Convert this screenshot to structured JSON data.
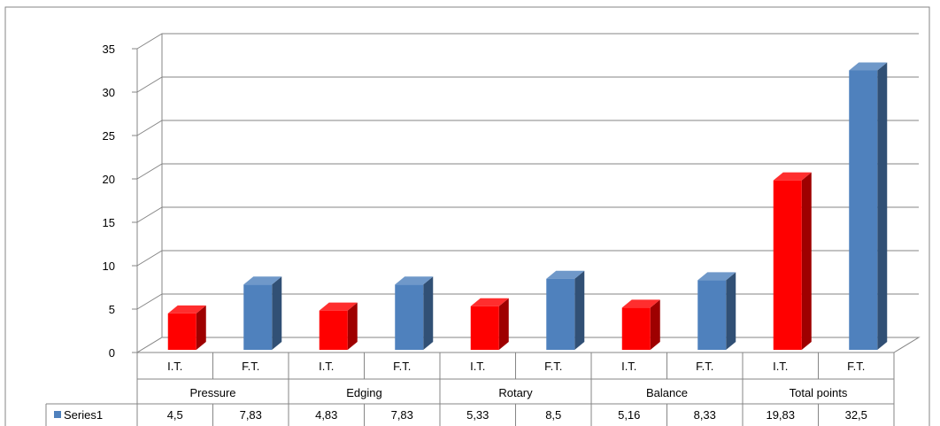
{
  "chart_data": {
    "type": "bar",
    "style": "3d-clustered-column-with-data-table",
    "title": "",
    "xlabel": "",
    "ylabel": "",
    "ylim": [
      0,
      35
    ],
    "yticks": [
      "0",
      "5",
      "10",
      "15",
      "20",
      "25",
      "30",
      "35"
    ],
    "grid": true,
    "legend": "data-table",
    "groups": [
      "Pressure",
      "Edging",
      "Rotary",
      "Balance",
      "Total points"
    ],
    "subcategories": [
      "I.T.",
      "F.T.",
      "I.T.",
      "F.T.",
      "I.T.",
      "F.T.",
      "I.T.",
      "F.T.",
      "I.T.",
      "F.T."
    ],
    "series": [
      {
        "name": "Series1",
        "values": [
          4.5,
          7.83,
          4.83,
          7.83,
          5.33,
          8.5,
          5.16,
          8.33,
          19.83,
          32.5
        ],
        "value_labels": [
          "4,5",
          "7,83",
          "4,83",
          "7,83",
          "5,33",
          "8,5",
          "5,16",
          "8,33",
          "19,83",
          "32,5"
        ]
      }
    ],
    "bar_colors": [
      "#ff0000",
      "#4f81bd",
      "#ff0000",
      "#4f81bd",
      "#ff0000",
      "#4f81bd",
      "#ff0000",
      "#4f81bd",
      "#ff0000",
      "#4f81bd"
    ],
    "legend_key_color": "#4f81bd"
  }
}
